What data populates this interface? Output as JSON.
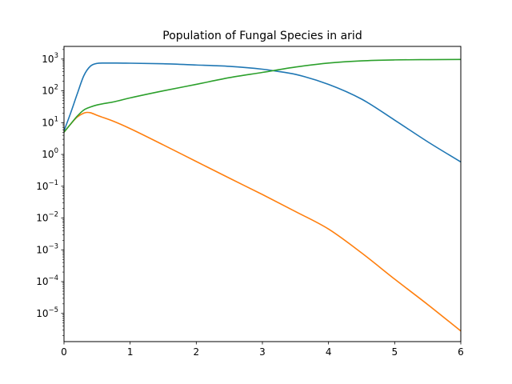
{
  "chart_data": {
    "type": "line",
    "title": "Population of Fungal Species in arid",
    "xlabel": "",
    "ylabel": "",
    "xlim": [
      0,
      6
    ],
    "ylim": [
      1.3e-06,
      2500
    ],
    "yscale": "log",
    "grid": false,
    "legend": "none",
    "x_ticks": [
      0,
      1,
      2,
      3,
      4,
      5,
      6
    ],
    "y_ticks": [
      {
        "base": "10",
        "exp": "3",
        "value": 1000
      },
      {
        "base": "10",
        "exp": "2",
        "value": 100
      },
      {
        "base": "10",
        "exp": "1",
        "value": 10
      },
      {
        "base": "10",
        "exp": "0",
        "value": 1
      },
      {
        "base": "10",
        "exp": "−1",
        "value": 0.1
      },
      {
        "base": "10",
        "exp": "−2",
        "value": 0.01
      },
      {
        "base": "10",
        "exp": "−3",
        "value": 0.001
      },
      {
        "base": "10",
        "exp": "−4",
        "value": 0.0001
      },
      {
        "base": "10",
        "exp": "−5",
        "value": 1e-05
      }
    ],
    "series": [
      {
        "color": "#1f77b4",
        "x": [
          0,
          0.1,
          0.2,
          0.3,
          0.4,
          0.5,
          0.6,
          0.8,
          1,
          1.5,
          2,
          2.5,
          3,
          3.2,
          3.5,
          4,
          4.5,
          5,
          5.5,
          6
        ],
        "y": [
          5.5,
          20,
          80,
          300,
          600,
          730,
          750,
          750,
          740,
          710,
          650,
          590,
          480,
          420,
          330,
          160,
          55,
          12,
          2.5,
          0.58
        ]
      },
      {
        "color": "#ff7f0e",
        "x": [
          0,
          0.1,
          0.2,
          0.3,
          0.35,
          0.4,
          0.5,
          0.75,
          1,
          1.5,
          2,
          2.5,
          3,
          3.5,
          4,
          4.5,
          5,
          5.5,
          6
        ],
        "y": [
          5,
          9,
          15,
          20,
          21,
          20.5,
          17,
          11,
          6.5,
          2,
          0.6,
          0.18,
          0.055,
          0.016,
          0.0045,
          0.0008,
          0.00012,
          1.9e-05,
          2.8e-06
        ]
      },
      {
        "color": "#2ca02c",
        "x": [
          0,
          0.1,
          0.2,
          0.3,
          0.4,
          0.5,
          0.75,
          1,
          1.5,
          2,
          2.5,
          3,
          3.5,
          4,
          4.5,
          5,
          5.5,
          6
        ],
        "y": [
          5,
          9,
          16,
          25,
          31,
          36,
          45,
          60,
          100,
          160,
          260,
          380,
          560,
          750,
          880,
          940,
          960,
          970
        ]
      }
    ]
  }
}
